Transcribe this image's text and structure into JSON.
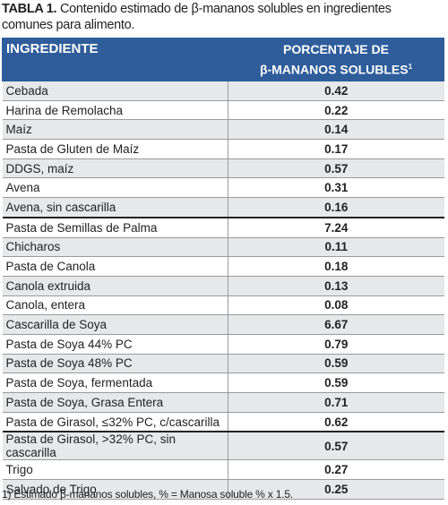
{
  "title": {
    "label": "TABLA 1.",
    "text": "Contenido estimado de β-mananos solubles en ingredientes comunes para alimento."
  },
  "table": {
    "header": {
      "ingredient": "INGREDIENTE",
      "percent_line1": "PORCENTAJE DE",
      "percent_line2": "β-MANANOS SOLUBLES",
      "percent_note": "1"
    },
    "rows": [
      [
        "Cebada",
        "0.42"
      ],
      [
        "Harina de Remolacha",
        "0.22"
      ],
      [
        "Maíz",
        "0.14"
      ],
      [
        "Pasta de Gluten de Maíz",
        "0.17"
      ],
      [
        "DDGS, maíz",
        "0.57"
      ],
      [
        "Avena",
        "0.31"
      ],
      [
        "Avena, sin cascarilla",
        "0.16"
      ],
      [
        "Pasta de Semillas de Palma",
        "7.24"
      ],
      [
        "Chicharos",
        "0.11"
      ],
      [
        "Pasta de Canola",
        "0.18"
      ],
      [
        "Canola extruida",
        "0.13"
      ],
      [
        "Canola, entera",
        "0.08"
      ],
      [
        "Cascarilla de Soya",
        "6.67"
      ],
      [
        "Pasta de Soya 44% PC",
        "0.79"
      ],
      [
        "Pasta de Soya 48% PC",
        "0.59"
      ],
      [
        "Pasta de Soya, fermentada",
        "0.59"
      ],
      [
        "Pasta de Soya, Grasa Entera",
        "0.71"
      ],
      [
        "Pasta de Girasol, ≤32% PC, c/cascarilla",
        "0.62"
      ],
      [
        "Pasta de Girasol, >32% PC, sin cascarilla",
        "0.57"
      ],
      [
        "Trigo",
        "0.27"
      ],
      [
        "Salvado de Trigo",
        "0.25"
      ]
    ]
  },
  "footnote": "1) Estimado β-mananos solubles, % = Manosa soluble % x 1.5."
}
